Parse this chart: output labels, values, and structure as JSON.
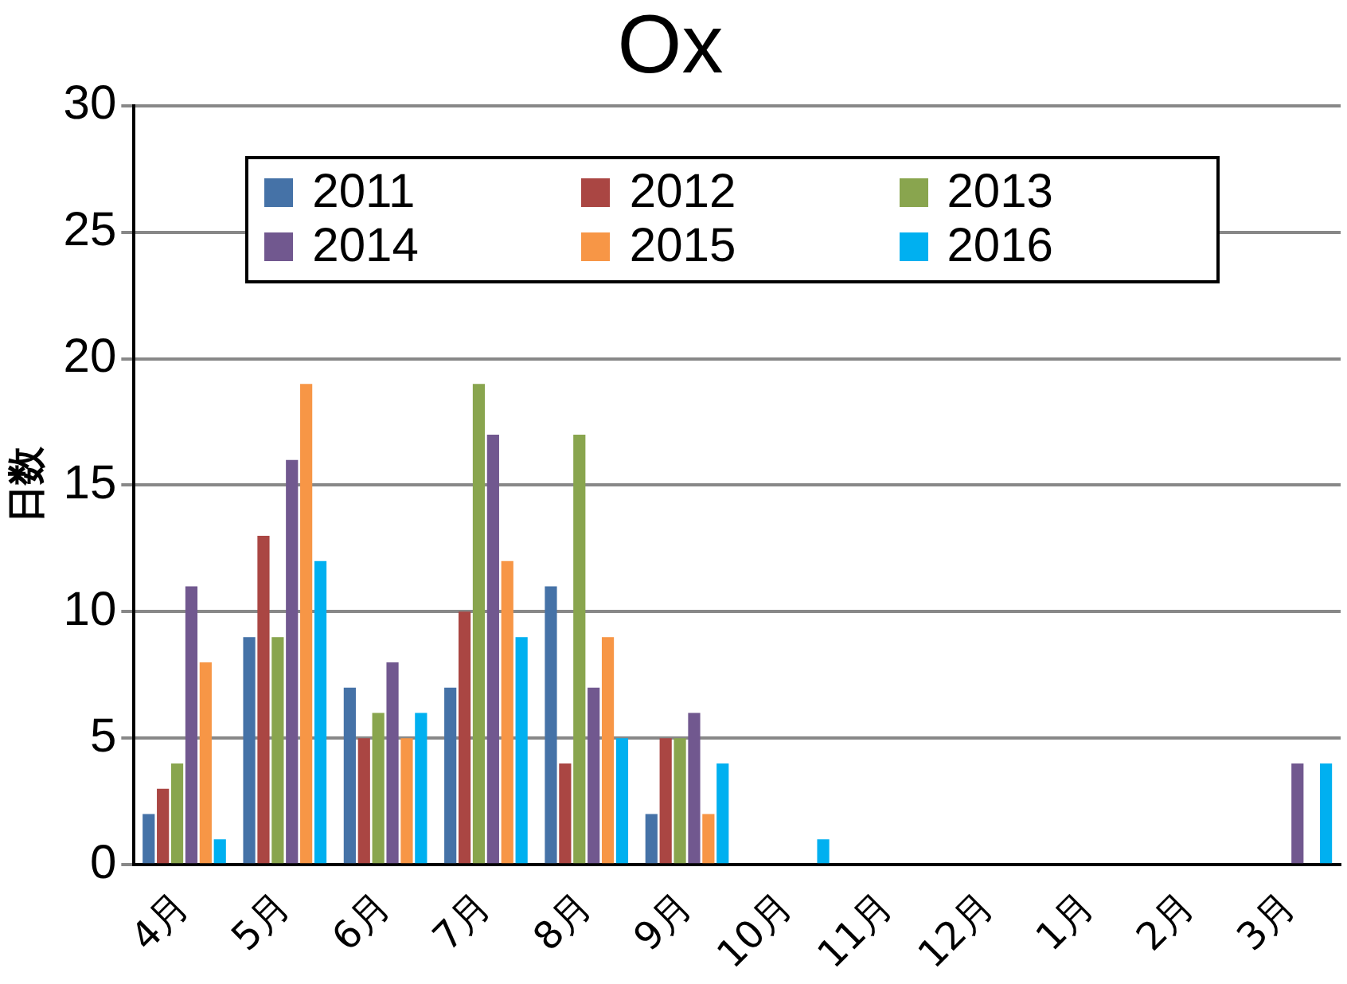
{
  "chart_data": {
    "type": "bar",
    "title": "Ox",
    "ylabel": "日数",
    "categories": [
      "4月",
      "5月",
      "6月",
      "7月",
      "8月",
      "9月",
      "10月",
      "11月",
      "12月",
      "1月",
      "2月",
      "3月"
    ],
    "series": [
      {
        "name": "2011",
        "color": "#4572a7",
        "values": [
          2,
          9,
          7,
          7,
          11,
          2,
          0,
          0,
          0,
          0,
          0,
          0
        ]
      },
      {
        "name": "2012",
        "color": "#aa4643",
        "values": [
          3,
          13,
          5,
          10,
          4,
          5,
          0,
          0,
          0,
          0,
          0,
          0
        ]
      },
      {
        "name": "2013",
        "color": "#89a54e",
        "values": [
          4,
          9,
          6,
          19,
          17,
          5,
          0,
          0,
          0,
          0,
          0,
          0
        ]
      },
      {
        "name": "2014",
        "color": "#71588f",
        "values": [
          11,
          16,
          8,
          17,
          7,
          6,
          0,
          0,
          0,
          0,
          0,
          4
        ]
      },
      {
        "name": "2015",
        "color": "#f79646",
        "values": [
          8,
          19,
          5,
          12,
          9,
          2,
          0,
          0,
          0,
          0,
          0,
          0
        ]
      },
      {
        "name": "2016",
        "color": "#00b0f0",
        "values": [
          1,
          12,
          6,
          9,
          5,
          4,
          1,
          0,
          0,
          0,
          0,
          4
        ]
      }
    ],
    "ylim": [
      0,
      30
    ],
    "yticks": [
      0,
      5,
      10,
      15,
      20,
      25,
      30
    ],
    "grid": "y",
    "legend": "top"
  }
}
